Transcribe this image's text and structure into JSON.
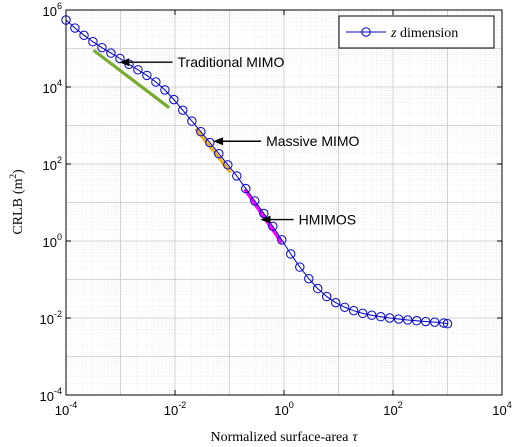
{
  "chart_data": {
    "type": "line",
    "xlabel_main": "Normalized surface-area",
    "xlabel_symbol": "τ",
    "ylabel_main": "CRLB",
    "ylabel_unit": "(m",
    "ylabel_unit_sup": "2",
    "ylabel_unit_close": ")",
    "x_scale": "log",
    "y_scale": "log",
    "xlim": [
      0.0001,
      10000
    ],
    "ylim": [
      0.0001,
      1000000
    ],
    "grid": true,
    "minor_grid": true,
    "legend_position": "top-right",
    "x_ticks": [
      {
        "base": "10",
        "exp": "-4",
        "value": 0.0001
      },
      {
        "base": "10",
        "exp": "-2",
        "value": 0.01
      },
      {
        "base": "10",
        "exp": "0",
        "value": 1
      },
      {
        "base": "10",
        "exp": "2",
        "value": 100
      },
      {
        "base": "10",
        "exp": "4",
        "value": 10000
      }
    ],
    "y_ticks": [
      {
        "base": "10",
        "exp": "-4",
        "value": 0.0001
      },
      {
        "base": "10",
        "exp": "-2",
        "value": 0.01
      },
      {
        "base": "10",
        "exp": "0",
        "value": 1
      },
      {
        "base": "10",
        "exp": "2",
        "value": 100
      },
      {
        "base": "10",
        "exp": "4",
        "value": 10000
      },
      {
        "base": "10",
        "exp": "6",
        "value": 1000000
      }
    ],
    "series": [
      {
        "name_symbol": "z",
        "name_text": " dimension",
        "color": "#0000cc",
        "marker": "circle",
        "x": [
          0.0001,
          0.000146,
          0.000214,
          0.000312,
          0.000457,
          0.000668,
          0.000977,
          0.00143,
          0.00209,
          0.00305,
          0.00446,
          0.00652,
          0.00954,
          0.0139,
          0.0204,
          0.0298,
          0.0436,
          0.0637,
          0.0932,
          0.136,
          0.199,
          0.291,
          0.426,
          0.623,
          0.911,
          1.33,
          1.95,
          2.85,
          4.16,
          6.09,
          8.91,
          13.0,
          19.0,
          27.8,
          40.7,
          59.5,
          87.0,
          127,
          186,
          272,
          398,
          582,
          851,
          1000
        ],
        "y": [
          550000,
          340000,
          220000,
          150000,
          105000,
          76000,
          55000,
          39000,
          28000,
          20000,
          13500,
          8400,
          4700,
          2500,
          1300,
          690,
          360,
          185,
          95,
          49,
          23,
          11,
          5.2,
          2.4,
          1.07,
          0.46,
          0.21,
          0.105,
          0.058,
          0.036,
          0.025,
          0.019,
          0.0155,
          0.0132,
          0.0118,
          0.0108,
          0.01,
          0.0094,
          0.0089,
          0.0085,
          0.0081,
          0.0078,
          0.0074,
          0.0071
        ]
      }
    ],
    "slope_segments": [
      {
        "color": "#77ac30",
        "x": [
          0.00032,
          0.0078
        ],
        "y": [
          90000,
          2900
        ]
      },
      {
        "color": "#edb120",
        "x": [
          0.024,
          0.105
        ],
        "y": [
          820,
          60
        ]
      },
      {
        "color": "#ff00ff",
        "x": [
          0.19,
          0.9
        ],
        "y": [
          22,
          0.9
        ]
      }
    ],
    "annotations": [
      {
        "text": "Traditional MIMO",
        "arrow_to": [
          0.00095,
          44000
        ],
        "label_at": [
          0.009,
          44000
        ]
      },
      {
        "text": "Massive MIMO",
        "arrow_to": [
          0.05,
          390
        ],
        "label_at": [
          0.38,
          390
        ]
      },
      {
        "text": "HMIMOS",
        "arrow_to": [
          0.37,
          3.6
        ],
        "label_at": [
          1.5,
          3.6
        ]
      }
    ]
  }
}
